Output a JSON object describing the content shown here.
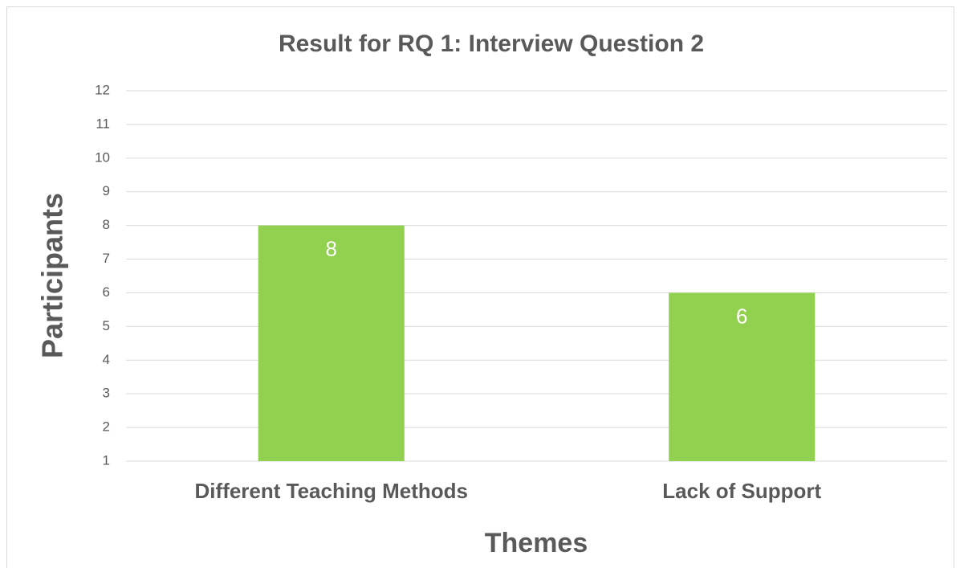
{
  "chart_data": {
    "type": "bar",
    "title": "Result for RQ 1: Interview Question 2",
    "x_label": "Themes",
    "y_label": "Participants",
    "categories": [
      "Different Teaching Methods",
      "Lack of Support"
    ],
    "values": [
      8,
      6
    ],
    "color": "#92d050",
    "ylim": [
      1,
      12
    ],
    "yticks": [
      1,
      2,
      3,
      4,
      5,
      6,
      7,
      8,
      9,
      10,
      11,
      12
    ],
    "grid": true
  }
}
